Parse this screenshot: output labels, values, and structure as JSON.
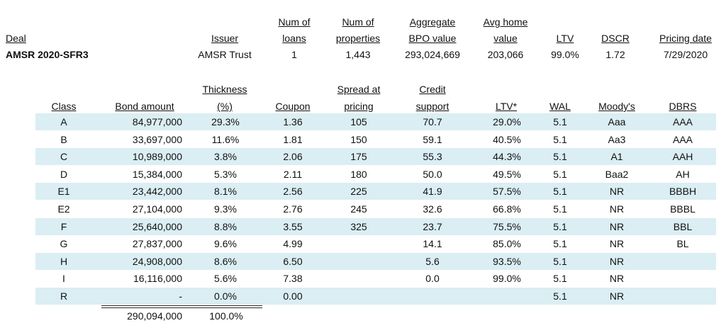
{
  "deal_table": {
    "headers": {
      "deal": "Deal",
      "issuer": "Issuer",
      "num_loans": [
        "Num of",
        "loans"
      ],
      "num_properties": [
        "Num of",
        "properties"
      ],
      "bpo_value": [
        "Aggregate",
        "BPO value"
      ],
      "avg_home_value": [
        "Avg home",
        "value"
      ],
      "ltv": "LTV",
      "dscr": "DSCR",
      "pricing_date": "Pricing date"
    },
    "row": {
      "deal": "AMSR 2020-SFR3",
      "issuer": "AMSR Trust",
      "num_loans": "1",
      "num_properties": "1,443",
      "bpo_value": "293,024,669",
      "avg_home_value": "203,066",
      "ltv": "99.0%",
      "dscr": "1.72",
      "pricing_date": "7/29/2020"
    }
  },
  "class_table": {
    "headers": {
      "class": "Class",
      "bond_amount": "Bond amount",
      "thickness": [
        "Thickness",
        "(%)"
      ],
      "coupon": "Coupon",
      "spread": [
        "Spread at",
        "pricing"
      ],
      "credit_support": [
        "Credit",
        "support"
      ],
      "ltv": "LTV*",
      "wal": "WAL",
      "moodys": "Moody's",
      "dbrs": "DBRS"
    },
    "rows": [
      {
        "class": "A",
        "bond_amount": "84,977,000",
        "thickness": "29.3%",
        "coupon": "1.36",
        "spread": "105",
        "credit_support": "70.7",
        "ltv": "29.0%",
        "wal": "5.1",
        "moodys": "Aaa",
        "dbrs": "AAA"
      },
      {
        "class": "B",
        "bond_amount": "33,697,000",
        "thickness": "11.6%",
        "coupon": "1.81",
        "spread": "150",
        "credit_support": "59.1",
        "ltv": "40.5%",
        "wal": "5.1",
        "moodys": "Aa3",
        "dbrs": "AAA"
      },
      {
        "class": "C",
        "bond_amount": "10,989,000",
        "thickness": "3.8%",
        "coupon": "2.06",
        "spread": "175",
        "credit_support": "55.3",
        "ltv": "44.3%",
        "wal": "5.1",
        "moodys": "A1",
        "dbrs": "AAH"
      },
      {
        "class": "D",
        "bond_amount": "15,384,000",
        "thickness": "5.3%",
        "coupon": "2.11",
        "spread": "180",
        "credit_support": "50.0",
        "ltv": "49.5%",
        "wal": "5.1",
        "moodys": "Baa2",
        "dbrs": "AH"
      },
      {
        "class": "E1",
        "bond_amount": "23,442,000",
        "thickness": "8.1%",
        "coupon": "2.56",
        "spread": "225",
        "credit_support": "41.9",
        "ltv": "57.5%",
        "wal": "5.1",
        "moodys": "NR",
        "dbrs": "BBBH"
      },
      {
        "class": "E2",
        "bond_amount": "27,104,000",
        "thickness": "9.3%",
        "coupon": "2.76",
        "spread": "245",
        "credit_support": "32.6",
        "ltv": "66.8%",
        "wal": "5.1",
        "moodys": "NR",
        "dbrs": "BBBL"
      },
      {
        "class": "F",
        "bond_amount": "25,640,000",
        "thickness": "8.8%",
        "coupon": "3.55",
        "spread": "325",
        "credit_support": "23.7",
        "ltv": "75.5%",
        "wal": "5.1",
        "moodys": "NR",
        "dbrs": "BBL"
      },
      {
        "class": "G",
        "bond_amount": "27,837,000",
        "thickness": "9.6%",
        "coupon": "4.99",
        "spread": "",
        "credit_support": "14.1",
        "ltv": "85.0%",
        "wal": "5.1",
        "moodys": "NR",
        "dbrs": "BL"
      },
      {
        "class": "H",
        "bond_amount": "24,908,000",
        "thickness": "8.6%",
        "coupon": "6.50",
        "spread": "",
        "credit_support": "5.6",
        "ltv": "93.5%",
        "wal": "5.1",
        "moodys": "NR",
        "dbrs": ""
      },
      {
        "class": "I",
        "bond_amount": "16,116,000",
        "thickness": "5.6%",
        "coupon": "7.38",
        "spread": "",
        "credit_support": "0.0",
        "ltv": "99.0%",
        "wal": "5.1",
        "moodys": "NR",
        "dbrs": ""
      },
      {
        "class": "R",
        "bond_amount": "-",
        "thickness": "0.0%",
        "coupon": "0.00",
        "spread": "",
        "credit_support": "",
        "ltv": "",
        "wal": "5.1",
        "moodys": "NR",
        "dbrs": ""
      }
    ],
    "total": {
      "bond_amount": "290,094,000",
      "thickness": "100.0%"
    },
    "band_color": "#daeef3"
  }
}
